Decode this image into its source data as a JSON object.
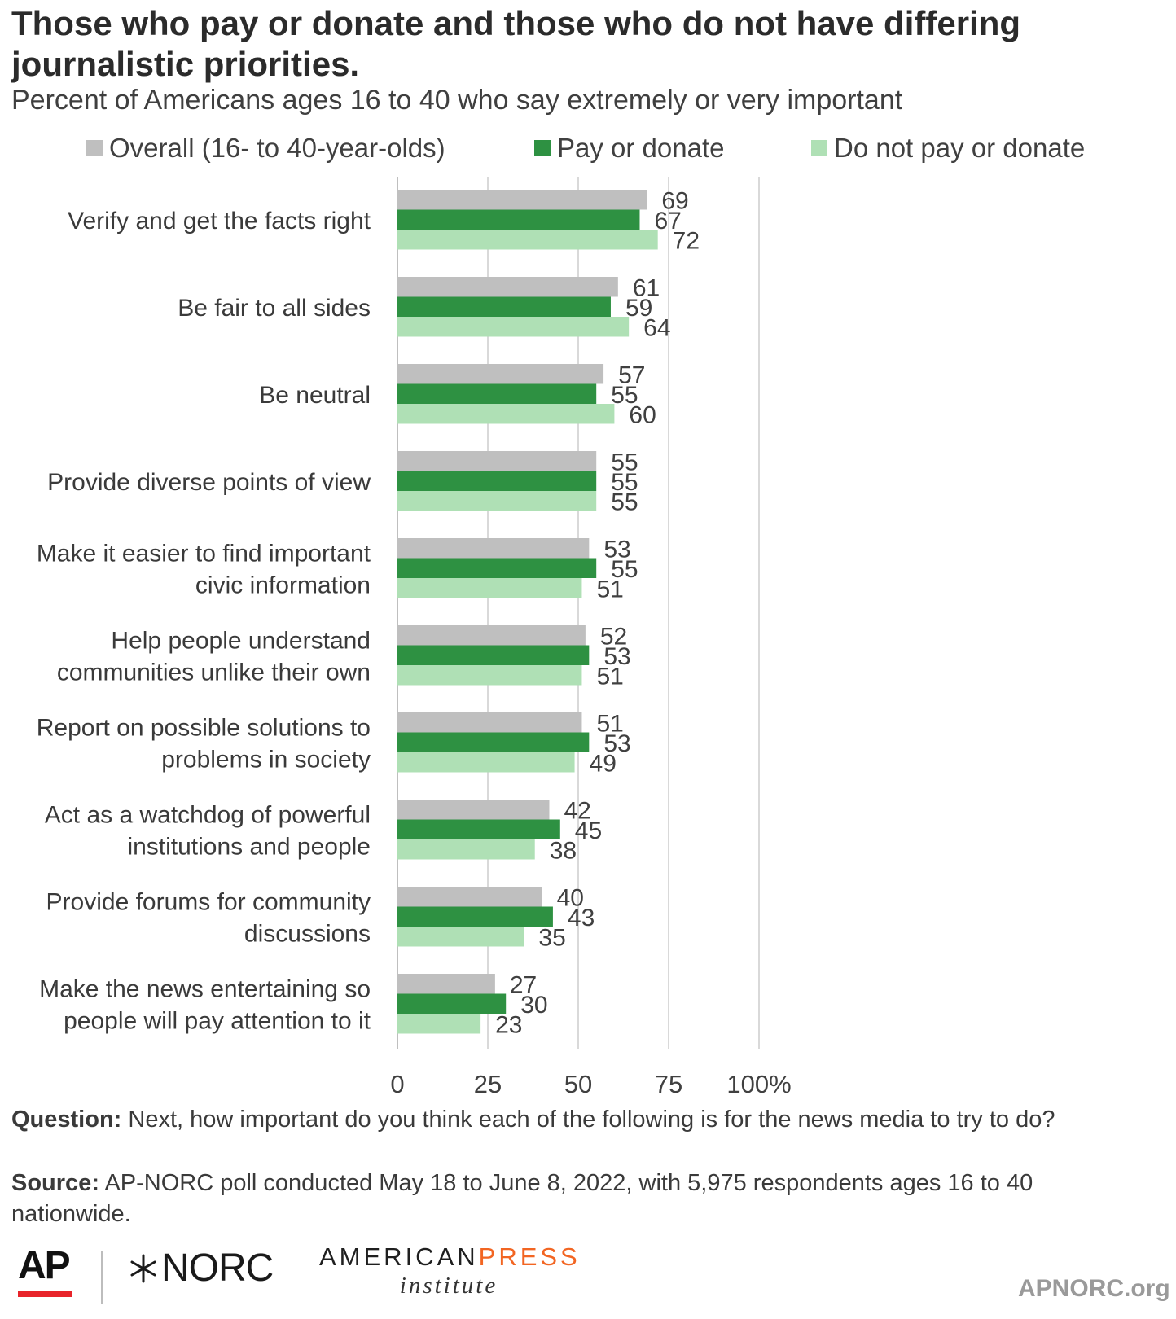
{
  "title": "Those who pay or donate and those who do not have differing journalistic priorities.",
  "subtitle": "Percent of Americans ages 16 to 40 who say extremely or very important",
  "colors": {
    "overall": "#bfbfbf",
    "pay": "#2e9142",
    "nopay": "#afe0b5",
    "grid": "#d9d9d9",
    "axis": "#bfbfbf"
  },
  "chart_data": {
    "type": "bar",
    "orientation": "horizontal",
    "categories": [
      [
        "Verify and get the facts right"
      ],
      [
        "Be fair to all sides"
      ],
      [
        "Be neutral"
      ],
      [
        "Provide diverse points of view"
      ],
      [
        "Make it easier to find important",
        "civic information"
      ],
      [
        "Help people understand",
        "communities unlike their own"
      ],
      [
        "Report on possible solutions to",
        "problems in society"
      ],
      [
        "Act as a watchdog of powerful",
        "institutions and people"
      ],
      [
        "Provide forums for community",
        "discussions"
      ],
      [
        "Make the news entertaining so",
        "people will pay attention to it"
      ]
    ],
    "series": [
      {
        "name": "Overall (16- to 40-year-olds)",
        "color": "#bfbfbf",
        "values": [
          69,
          61,
          57,
          55,
          53,
          52,
          51,
          42,
          40,
          27
        ]
      },
      {
        "name": "Pay or donate",
        "color": "#2e9142",
        "values": [
          67,
          59,
          55,
          55,
          55,
          53,
          53,
          45,
          43,
          30
        ]
      },
      {
        "name": "Do not pay or donate",
        "color": "#afe0b5",
        "values": [
          72,
          64,
          60,
          55,
          51,
          51,
          49,
          38,
          35,
          23
        ]
      }
    ],
    "x_ticks": [
      "0",
      "25",
      "50",
      "75",
      "100%"
    ],
    "xlim": [
      0,
      100
    ],
    "grid": true,
    "legend": "top"
  },
  "footer": {
    "question_label": "Question:",
    "question_text": " Next, how important do you think each of the following is for the news media to try to do?",
    "source_label": "Source:",
    "source_text": " AP-NORC poll conducted May 18 to June 8, 2022, with 5,975 respondents ages 16 to 40 nationwide."
  },
  "logos": {
    "ap": "AP",
    "norc": "NORC",
    "api_part1": "AMERICAN",
    "api_part2": "PRESS",
    "api_part3": "institute",
    "site": "APNORC.org"
  }
}
